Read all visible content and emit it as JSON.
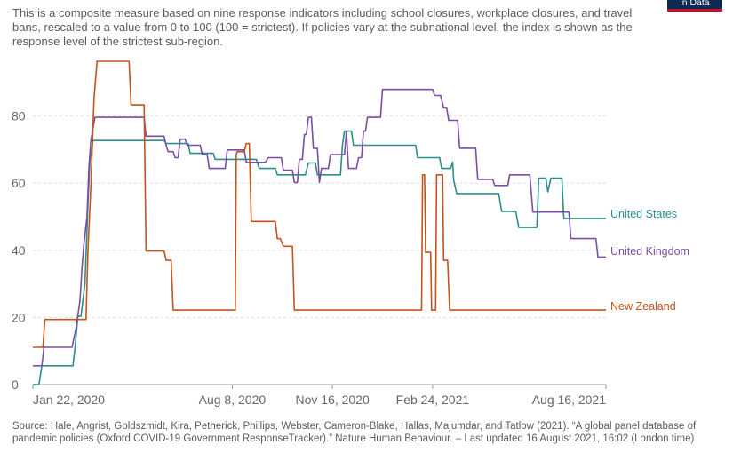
{
  "subtitle": "This is a composite measure based on nine response indicators including school closures, workplace closures, and travel bans, rescaled to a value from 0 to 100 (100 = strictest). If policies vary at the subnational level, the index is shown as the response level of the strictest sub-region.",
  "logo_text": "in Data",
  "source_note": "Source: Hale, Angrist, Goldszmidt, Kira, Petherick, Phillips, Webster, Cameron-Blake, Hallas, Majumdar, and Tatlow (2021). “A global panel database of pandemic policies (Oxford COVID-19 Government ResponseTracker).” Nature Human Behaviour. – Last updated 16 August 2021, 16:02 (London time)",
  "chart_data": {
    "type": "line",
    "xaxis": {
      "type": "date",
      "range": [
        "2020-01-22",
        "2021-08-16"
      ],
      "tick_labels": [
        "Jan 22, 2020",
        "Aug 8, 2020",
        "Nov 16, 2020",
        "Feb 24, 2021",
        "Aug 16, 2021"
      ]
    },
    "yaxis": {
      "range": [
        0,
        100
      ],
      "ticks": [
        0,
        20,
        40,
        60,
        80
      ]
    },
    "grid": "horizontal dotted",
    "legend": "line-end labels on the right",
    "colors": {
      "United States": "#2a8f8a",
      "United Kingdom": "#7b4ea3",
      "New Zealand": "#c2541c"
    },
    "series": [
      {
        "name": "United States",
        "points": [
          [
            "2020-01-22",
            0
          ],
          [
            "2020-01-28",
            0
          ],
          [
            "2020-01-31",
            5.6
          ],
          [
            "2020-03-02",
            5.6
          ],
          [
            "2020-03-04",
            11
          ],
          [
            "2020-03-07",
            20.4
          ],
          [
            "2020-03-10",
            20.4
          ],
          [
            "2020-03-14",
            30
          ],
          [
            "2020-03-16",
            46
          ],
          [
            "2020-03-17",
            54
          ],
          [
            "2020-03-19",
            67
          ],
          [
            "2020-03-22",
            72.7
          ],
          [
            "2020-06-01",
            72.7
          ],
          [
            "2020-06-03",
            71.8
          ],
          [
            "2020-06-25",
            71.8
          ],
          [
            "2020-06-27",
            68.9
          ],
          [
            "2020-07-20",
            68.9
          ],
          [
            "2020-07-22",
            67.1
          ],
          [
            "2020-09-01",
            67.1
          ],
          [
            "2020-09-04",
            64.4
          ],
          [
            "2020-09-20",
            64.4
          ],
          [
            "2020-09-22",
            62.5
          ],
          [
            "2020-10-20",
            62.5
          ],
          [
            "2020-10-23",
            66
          ],
          [
            "2020-10-30",
            66
          ],
          [
            "2020-11-01",
            62.5
          ],
          [
            "2020-11-24",
            62.5
          ],
          [
            "2020-11-26",
            71.3
          ],
          [
            "2020-11-28",
            75.5
          ],
          [
            "2020-12-05",
            75.5
          ],
          [
            "2020-12-07",
            71.3
          ],
          [
            "2021-02-07",
            71.3
          ],
          [
            "2021-02-09",
            67.6
          ],
          [
            "2021-03-03",
            67.6
          ],
          [
            "2021-03-05",
            64.4
          ],
          [
            "2021-03-14",
            64.4
          ],
          [
            "2021-03-16",
            66.3
          ],
          [
            "2021-03-17",
            60.9
          ],
          [
            "2021-03-20",
            56.9
          ],
          [
            "2021-05-01",
            56.9
          ],
          [
            "2021-05-04",
            51.6
          ],
          [
            "2021-05-18",
            51.6
          ],
          [
            "2021-05-21",
            46.8
          ],
          [
            "2021-06-08",
            46.8
          ],
          [
            "2021-06-10",
            61.5
          ],
          [
            "2021-06-17",
            61.5
          ],
          [
            "2021-06-19",
            57.4
          ],
          [
            "2021-06-22",
            61.5
          ],
          [
            "2021-07-03",
            61.5
          ],
          [
            "2021-07-05",
            49.5
          ],
          [
            "2021-08-16",
            49.5
          ]
        ]
      },
      {
        "name": "United Kingdom",
        "points": [
          [
            "2020-01-22",
            5.6
          ],
          [
            "2020-01-31",
            5.6
          ],
          [
            "2020-02-01",
            8.3
          ],
          [
            "2020-02-02",
            11.1
          ],
          [
            "2020-03-01",
            11.1
          ],
          [
            "2020-03-03",
            13.9
          ],
          [
            "2020-03-05",
            16.7
          ],
          [
            "2020-03-09",
            25
          ],
          [
            "2020-03-11",
            35
          ],
          [
            "2020-03-13",
            42
          ],
          [
            "2020-03-16",
            50
          ],
          [
            "2020-03-18",
            65
          ],
          [
            "2020-03-20",
            73
          ],
          [
            "2020-03-24",
            79.6
          ],
          [
            "2020-05-12",
            79.6
          ],
          [
            "2020-05-14",
            74
          ],
          [
            "2020-06-01",
            74
          ],
          [
            "2020-06-03",
            71.3
          ],
          [
            "2020-06-05",
            69.4
          ],
          [
            "2020-06-10",
            69.4
          ],
          [
            "2020-06-12",
            67.6
          ],
          [
            "2020-06-15",
            67.6
          ],
          [
            "2020-06-17",
            73.1
          ],
          [
            "2020-06-22",
            73.1
          ],
          [
            "2020-06-24",
            71.3
          ],
          [
            "2020-07-07",
            71.3
          ],
          [
            "2020-07-09",
            68.5
          ],
          [
            "2020-07-14",
            68.5
          ],
          [
            "2020-07-16",
            64.4
          ],
          [
            "2020-08-01",
            64.4
          ],
          [
            "2020-08-03",
            69.9
          ],
          [
            "2020-08-20",
            69.9
          ],
          [
            "2020-08-22",
            66.2
          ],
          [
            "2020-09-10",
            66.2
          ],
          [
            "2020-09-13",
            67.6
          ],
          [
            "2020-09-26",
            67.6
          ],
          [
            "2020-09-28",
            63.9
          ],
          [
            "2020-10-07",
            63.9
          ],
          [
            "2020-10-09",
            60.2
          ],
          [
            "2020-10-12",
            60.2
          ],
          [
            "2020-10-14",
            67.1
          ],
          [
            "2020-10-17",
            67.1
          ],
          [
            "2020-10-19",
            74.5
          ],
          [
            "2020-10-21",
            74.5
          ],
          [
            "2020-10-23",
            79.6
          ],
          [
            "2020-10-26",
            79.6
          ],
          [
            "2020-10-28",
            70.4
          ],
          [
            "2020-11-01",
            70.4
          ],
          [
            "2020-11-03",
            60.2
          ],
          [
            "2020-11-05",
            64.4
          ],
          [
            "2020-11-12",
            64.4
          ],
          [
            "2020-11-14",
            68.5
          ],
          [
            "2020-11-28",
            68.5
          ],
          [
            "2020-11-30",
            75.5
          ],
          [
            "2020-12-02",
            64.4
          ],
          [
            "2020-12-10",
            64.4
          ],
          [
            "2020-12-12",
            67.6
          ],
          [
            "2020-12-15",
            67.6
          ],
          [
            "2020-12-17",
            75.5
          ],
          [
            "2020-12-19",
            75.5
          ],
          [
            "2020-12-21",
            79.6
          ],
          [
            "2021-01-03",
            79.6
          ],
          [
            "2021-01-05",
            87.9
          ],
          [
            "2021-02-24",
            87.9
          ],
          [
            "2021-02-26",
            86.1
          ],
          [
            "2021-03-04",
            86.1
          ],
          [
            "2021-03-07",
            82.4
          ],
          [
            "2021-03-10",
            82.4
          ],
          [
            "2021-03-12",
            78.7
          ],
          [
            "2021-03-21",
            78.7
          ],
          [
            "2021-03-23",
            70.4
          ],
          [
            "2021-04-08",
            70.4
          ],
          [
            "2021-04-10",
            61.1
          ],
          [
            "2021-04-25",
            61.1
          ],
          [
            "2021-04-27",
            59.3
          ],
          [
            "2021-05-10",
            59.3
          ],
          [
            "2021-05-12",
            62.5
          ],
          [
            "2021-05-25",
            62.5
          ],
          [
            "2021-05-27",
            62.5
          ],
          [
            "2021-06-01",
            62.5
          ],
          [
            "2021-06-04",
            51.4
          ],
          [
            "2021-07-10",
            51.4
          ],
          [
            "2021-07-12",
            43.5
          ],
          [
            "2021-08-06",
            43.5
          ],
          [
            "2021-08-08",
            38
          ],
          [
            "2021-08-16",
            38
          ]
        ]
      },
      {
        "name": "New Zealand",
        "points": [
          [
            "2020-01-22",
            11.1
          ],
          [
            "2020-02-01",
            11.1
          ],
          [
            "2020-02-03",
            19.4
          ],
          [
            "2020-03-15",
            19.4
          ],
          [
            "2020-03-17",
            40
          ],
          [
            "2020-03-20",
            60
          ],
          [
            "2020-03-23",
            85
          ],
          [
            "2020-03-26",
            96.3
          ],
          [
            "2020-04-27",
            96.3
          ],
          [
            "2020-04-29",
            83.3
          ],
          [
            "2020-05-12",
            83.3
          ],
          [
            "2020-05-14",
            39.8
          ],
          [
            "2020-06-01",
            39.8
          ],
          [
            "2020-06-03",
            37
          ],
          [
            "2020-06-08",
            37
          ],
          [
            "2020-06-10",
            22.2
          ],
          [
            "2020-08-11",
            22.2
          ],
          [
            "2020-08-12",
            68.5
          ],
          [
            "2020-08-13",
            69.4
          ],
          [
            "2020-08-20",
            69.4
          ],
          [
            "2020-08-22",
            71.8
          ],
          [
            "2020-08-25",
            71.8
          ],
          [
            "2020-08-27",
            48.6
          ],
          [
            "2020-09-20",
            48.6
          ],
          [
            "2020-09-22",
            43.5
          ],
          [
            "2020-09-25",
            43.5
          ],
          [
            "2020-09-28",
            41.2
          ],
          [
            "2020-10-07",
            41.2
          ],
          [
            "2020-10-09",
            22.2
          ],
          [
            "2021-02-13",
            22.2
          ],
          [
            "2021-02-14",
            62.5
          ],
          [
            "2021-02-16",
            62.5
          ],
          [
            "2021-02-17",
            39.4
          ],
          [
            "2021-02-22",
            39.4
          ],
          [
            "2021-02-23",
            22.2
          ],
          [
            "2021-02-27",
            22.2
          ],
          [
            "2021-02-28",
            62.5
          ],
          [
            "2021-03-06",
            62.5
          ],
          [
            "2021-03-07",
            37
          ],
          [
            "2021-03-11",
            37
          ],
          [
            "2021-03-13",
            22.2
          ],
          [
            "2021-08-16",
            22.2
          ]
        ]
      }
    ]
  }
}
